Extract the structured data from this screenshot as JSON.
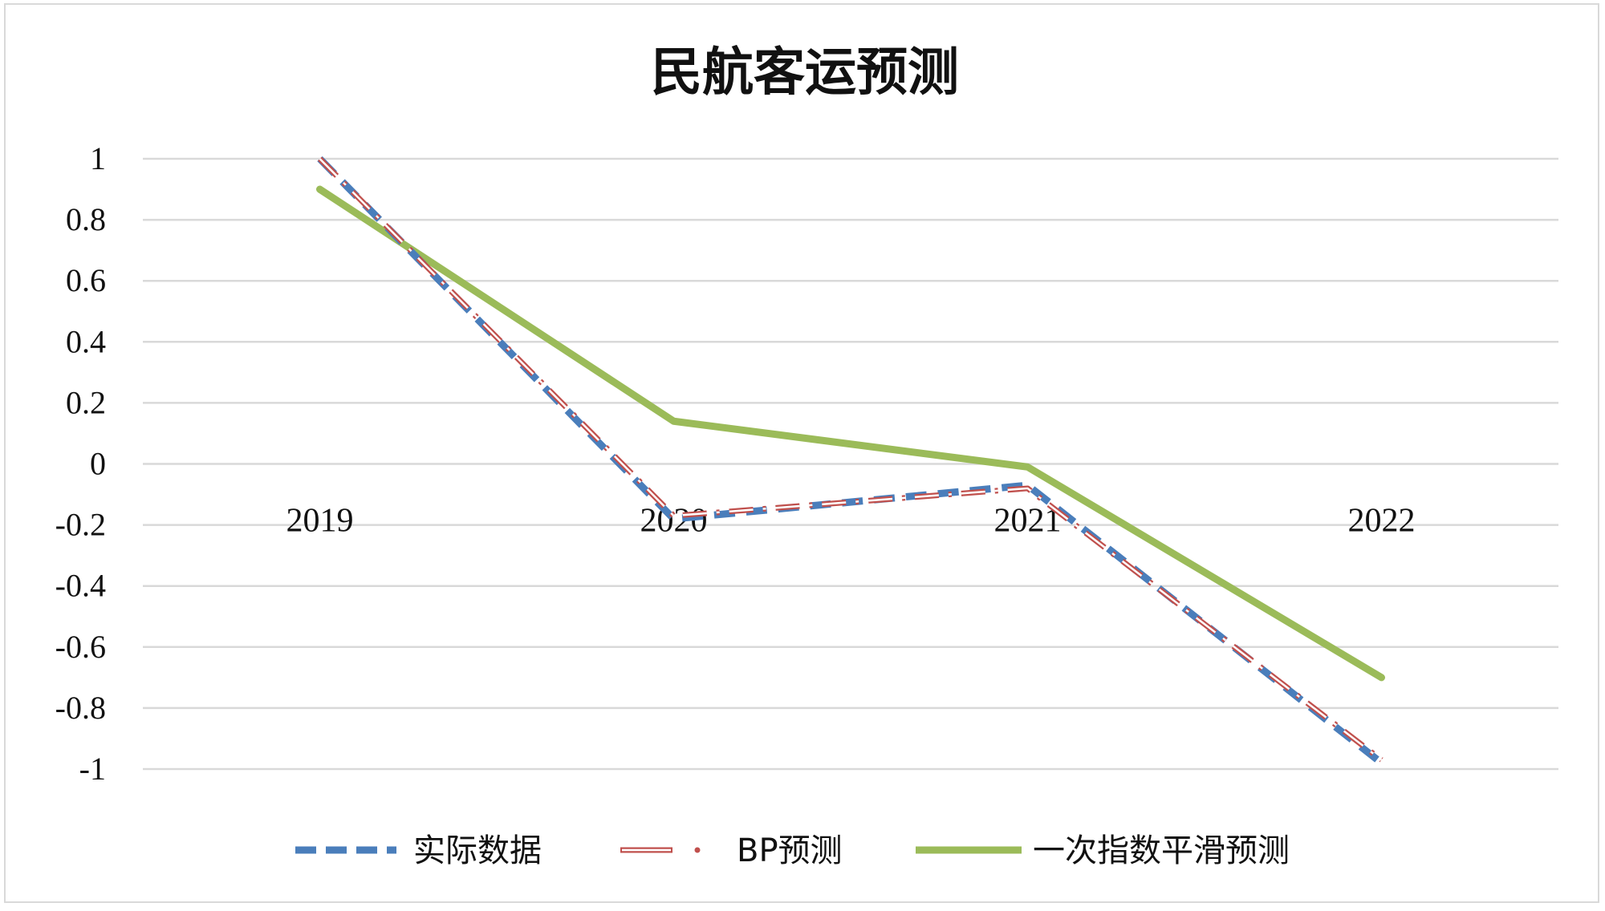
{
  "chart_data": {
    "type": "line",
    "title": "民航客运预测",
    "xlabel": "",
    "ylabel": "",
    "categories": [
      "2019",
      "2020",
      "2021",
      "2022"
    ],
    "ylim": [
      -1,
      1
    ],
    "yticks": [
      "1",
      "0.8",
      "0.6",
      "0.4",
      "0.2",
      "0",
      "-0.2",
      "-0.4",
      "-0.6",
      "-0.8",
      "-1"
    ],
    "grid": true,
    "legend_position": "bottom",
    "series": [
      {
        "name": "实际数据",
        "values": [
          1.0,
          -0.18,
          -0.07,
          -0.98
        ],
        "color": "#4a7ebb",
        "style": "dashed"
      },
      {
        "name": "BP预测",
        "values": [
          1.0,
          -0.17,
          -0.08,
          -0.97
        ],
        "color": "#c0504d",
        "style": "dash-dot outline"
      },
      {
        "name": "一次指数平滑预测",
        "values": [
          0.9,
          0.14,
          -0.01,
          -0.7
        ],
        "color": "#9bbb59",
        "style": "solid"
      }
    ]
  }
}
